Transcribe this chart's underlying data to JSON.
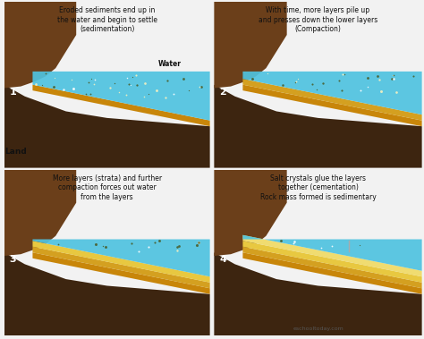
{
  "bg_color": "#f2f2f2",
  "panel_bg": "#ffffff",
  "titles": [
    "Eroded sediments end up in\nthe water and begin to settle\n(sedimentation)",
    "With time, more layers pile up\nand presses down the lower layers\n(Compaction)",
    "More layers (strata) and further\ncompaction forces out water\nfrom the layers",
    "Salt crystals glue the layers\ntogether (cementation)\nRock mass formed is sedimentary"
  ],
  "numbers": [
    "1",
    "2",
    "3",
    "4"
  ],
  "land_label": "Land",
  "water_label": "Water",
  "footer": "eschooltoday.com",
  "colors": {
    "dark_brown": "#3d2510",
    "medium_brown": "#6b3f1a",
    "light_brown": "#8a5a2a",
    "water_blue": "#4fc3e0",
    "sand_orange": "#c8860a",
    "gold_yellow": "#d4a020",
    "bright_yellow": "#e8c840",
    "light_yellow": "#f0dc70",
    "sediment_dot_dark": "#4a6030",
    "sediment_dot_light": "#f5f0c0",
    "white_dot": "#ffffff",
    "divider": "#cccccc",
    "text_color": "#111111",
    "number_color": "#ffffff"
  }
}
